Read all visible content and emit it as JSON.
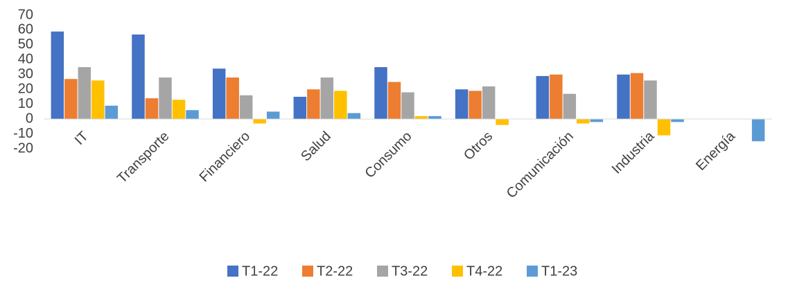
{
  "chart_data": {
    "type": "bar",
    "title": "",
    "xlabel": "",
    "ylabel": "",
    "ylim": [
      -20,
      70
    ],
    "yticks": [
      70,
      60,
      50,
      40,
      30,
      20,
      10,
      0,
      -10,
      -20
    ],
    "grid": false,
    "legend_position": "bottom",
    "categories": [
      "IT",
      "Transporte",
      "Financiero",
      "Salud",
      "Consumo",
      "Otros",
      "Comunicación",
      "Industria",
      "Energía"
    ],
    "series": [
      {
        "name": "T1-22",
        "color": "#4472C4",
        "values": [
          59,
          57,
          34,
          15,
          35,
          20,
          29,
          30,
          0
        ]
      },
      {
        "name": "T2-22",
        "color": "#ED7D31",
        "values": [
          27,
          14,
          28,
          20,
          25,
          19,
          30,
          31,
          0
        ]
      },
      {
        "name": "T3-22",
        "color": "#A5A5A5",
        "values": [
          35,
          28,
          16,
          28,
          18,
          22,
          17,
          26,
          0
        ]
      },
      {
        "name": "T4-22",
        "color": "#FFC000",
        "values": [
          26,
          13,
          -3,
          19,
          2,
          -4,
          -3,
          -11,
          0
        ]
      },
      {
        "name": "T1-23",
        "color": "#5B9BD5",
        "values": [
          9,
          6,
          5,
          4,
          2,
          0,
          -2,
          -2,
          -15
        ]
      }
    ]
  }
}
